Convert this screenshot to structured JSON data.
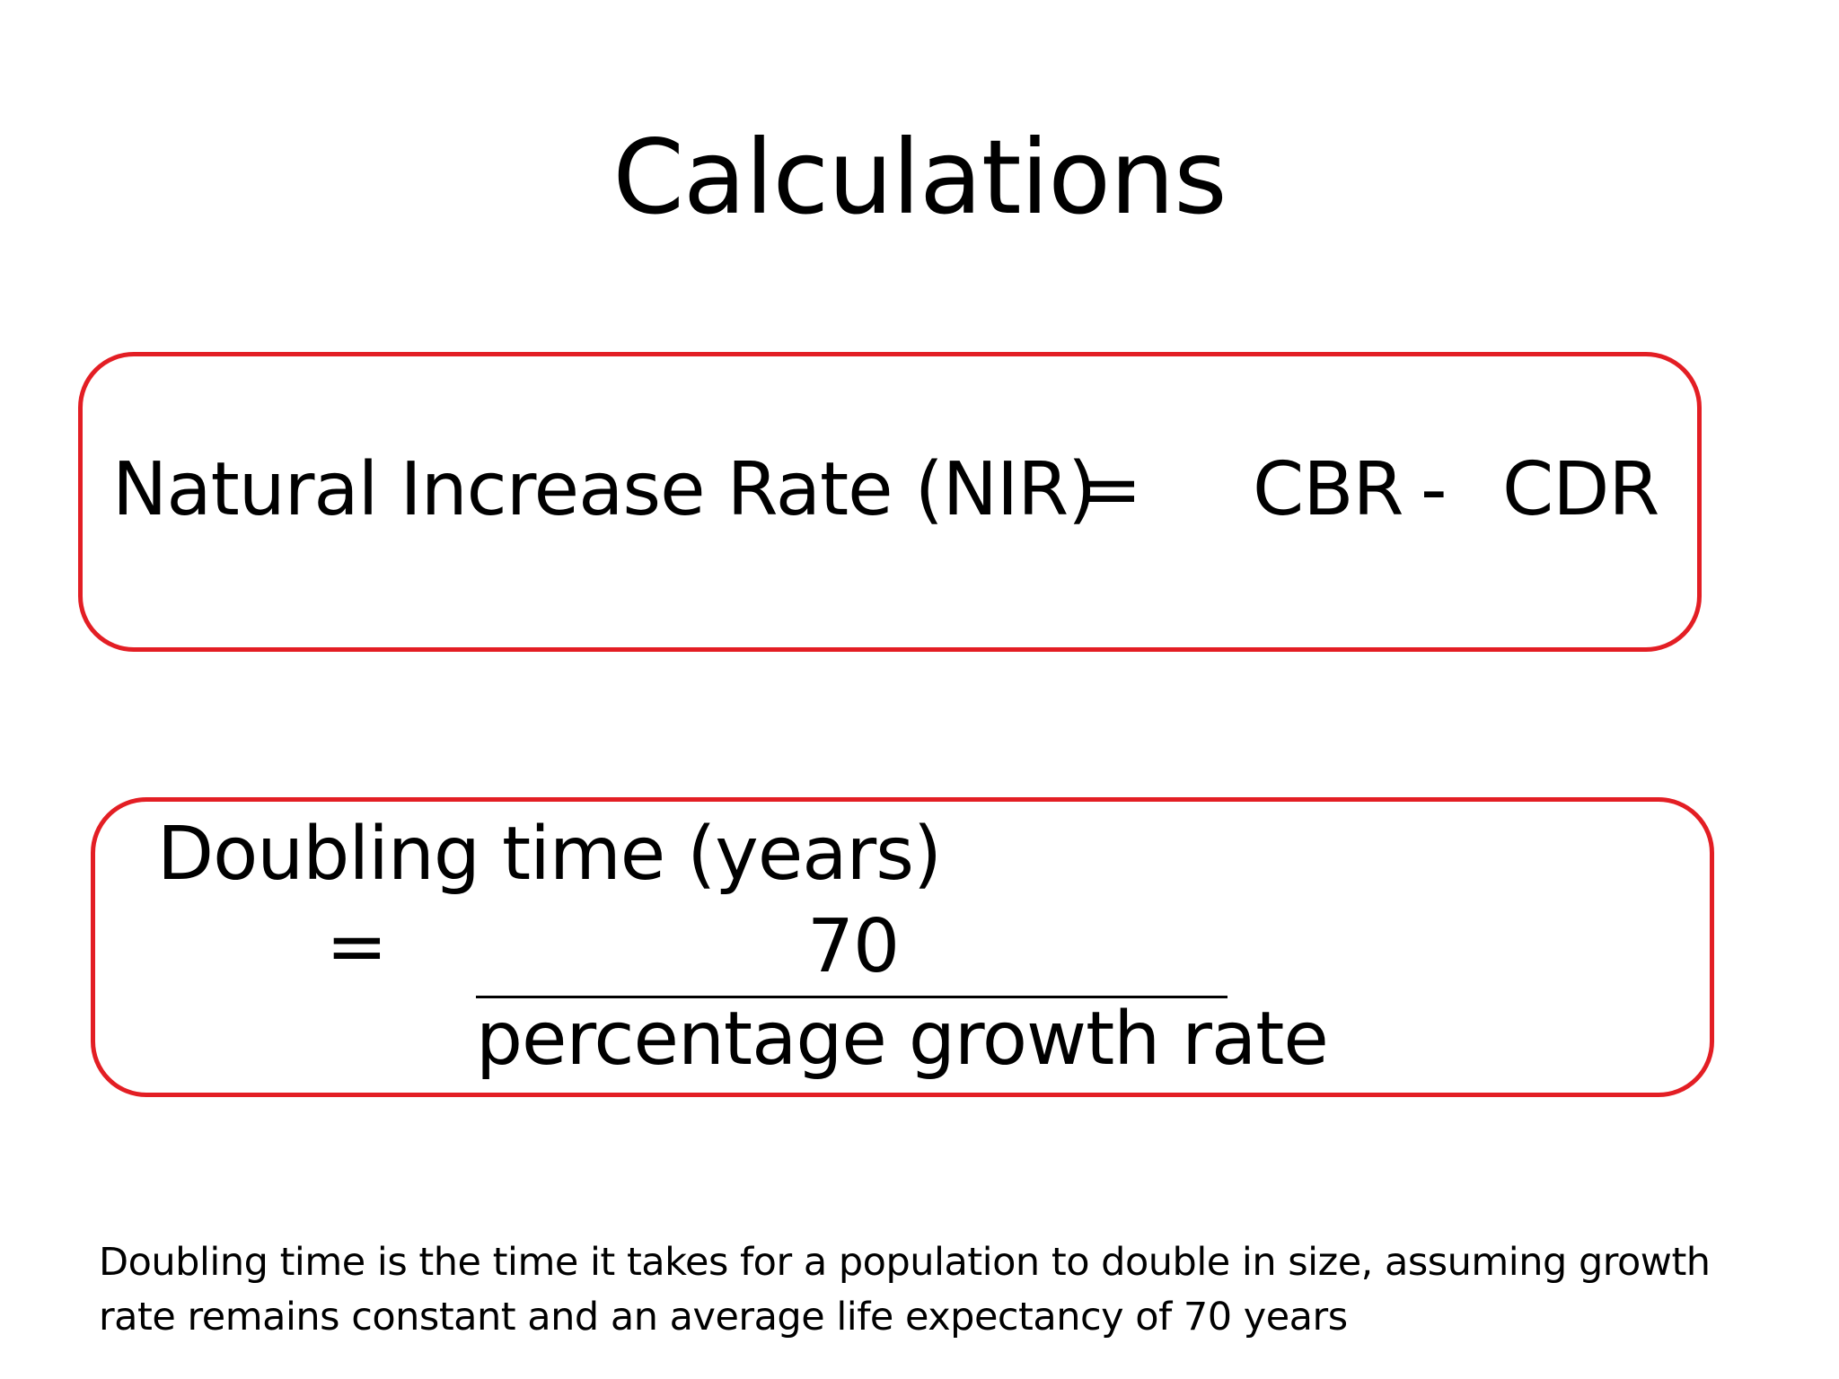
{
  "slide": {
    "title": "Calculations"
  },
  "nir_formula": {
    "label": "Natural Increase Rate (NIR)",
    "equals": "=",
    "term1": "CBR",
    "operator": "-",
    "term2": "CDR"
  },
  "doubling_formula": {
    "label": "Doubling time (years)",
    "equals": "=",
    "numerator": "70",
    "denominator": "percentage growth rate"
  },
  "footnote": {
    "line1": "Doubling time is the time it takes for a population to double in size, assuming growth",
    "line2": "rate remains constant and an average life expectancy of 70 years"
  },
  "colors": {
    "box_border": "#e31e24",
    "text": "#000000",
    "background": "#ffffff"
  }
}
